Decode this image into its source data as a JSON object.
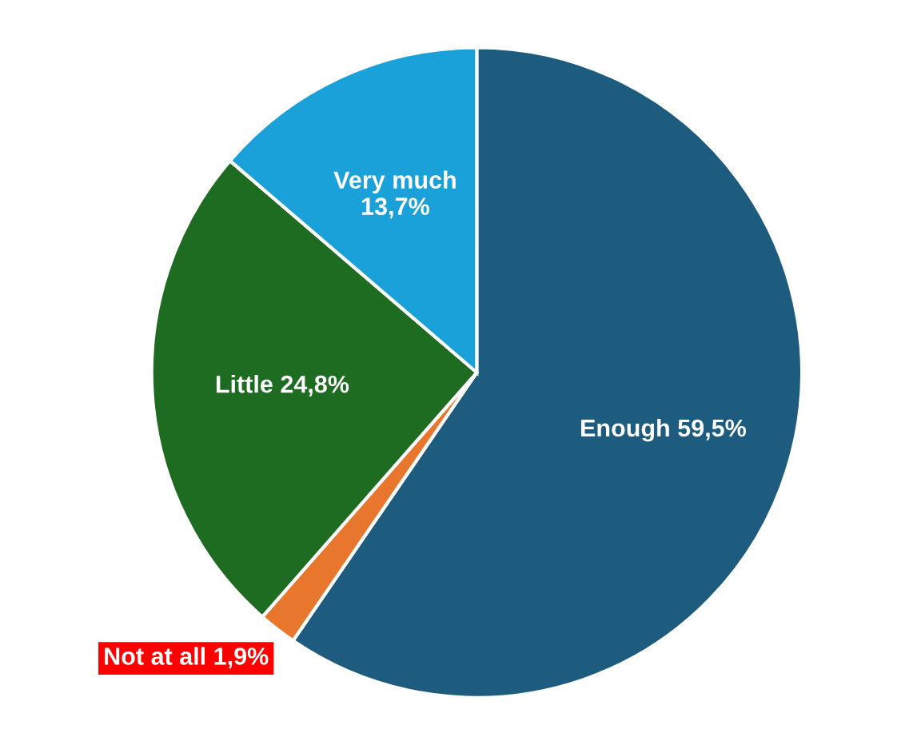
{
  "chart_data": {
    "type": "pie",
    "categories": [
      "Enough",
      "Not at all",
      "Little",
      "Very much"
    ],
    "values": [
      59.5,
      1.9,
      24.8,
      13.7
    ],
    "colors": [
      "#1d5c7e",
      "#e8762c",
      "#1e6b22",
      "#1ba1d9"
    ],
    "value_labels": [
      "59,5%",
      "1,9%",
      "24,8%",
      "13,7%"
    ]
  }
}
